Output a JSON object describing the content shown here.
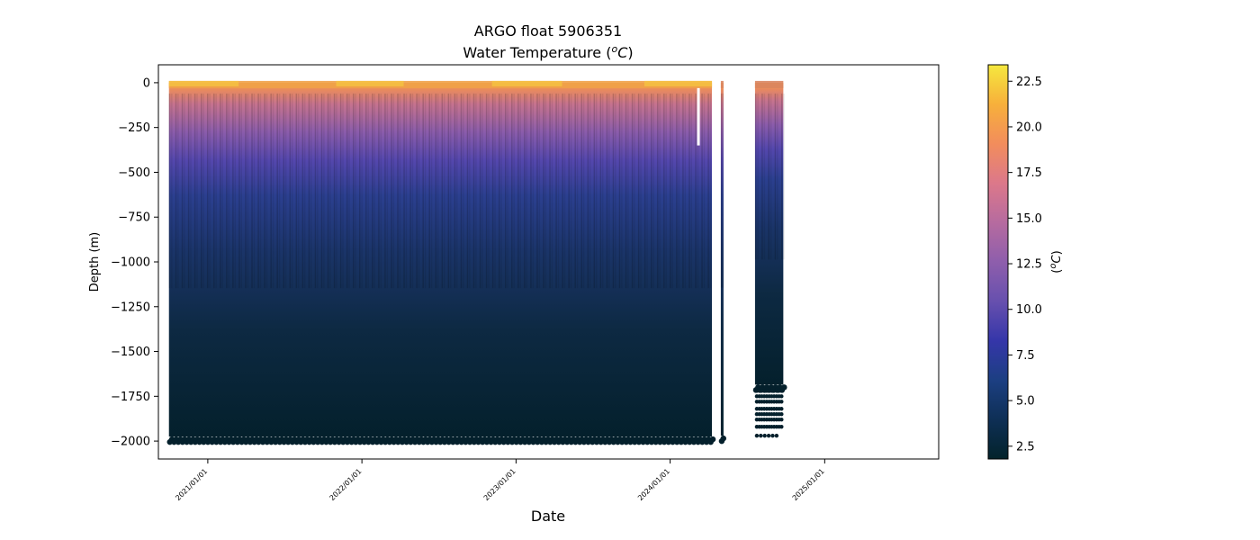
{
  "chart_data": {
    "type": "scatter",
    "title": "ARGO float 5906351",
    "subtitle_prefix": "Water Temperature (",
    "subtitle_unit_sup": "o",
    "subtitle_unit_base": "C",
    "subtitle_suffix": ")",
    "xlabel": "Date",
    "ylabel": "Depth (m)",
    "colorbar_label_prefix": "(",
    "colorbar_label_sup": "o",
    "colorbar_label_base": "C",
    "colorbar_label_suffix": ")",
    "xlim": [
      "2020-09-06",
      "2025-09-28"
    ],
    "ylim": [
      -2100,
      100
    ],
    "x_ticks": [
      {
        "date": "2021-01-01",
        "label": "2021/01/01"
      },
      {
        "date": "2022-01-01",
        "label": "2022/01/01"
      },
      {
        "date": "2023-01-01",
        "label": "2023/01/01"
      },
      {
        "date": "2024-01-01",
        "label": "2024/01/01"
      },
      {
        "date": "2025-01-01",
        "label": "2025/01/01"
      }
    ],
    "y_ticks": [
      {
        "value": 0,
        "label": "0"
      },
      {
        "value": -250,
        "label": "−250"
      },
      {
        "value": -500,
        "label": "−500"
      },
      {
        "value": -750,
        "label": "−750"
      },
      {
        "value": -1000,
        "label": "−1000"
      },
      {
        "value": -1250,
        "label": "−1250"
      },
      {
        "value": -1500,
        "label": "−1500"
      },
      {
        "value": -1750,
        "label": "−1750"
      },
      {
        "value": -2000,
        "label": "−2000"
      }
    ],
    "colorbar": {
      "range": [
        1.8,
        23.4
      ],
      "colormap": "thermal",
      "ticks": [
        {
          "value": 2.5,
          "label": "2.5"
        },
        {
          "value": 5.0,
          "label": "5.0"
        },
        {
          "value": 7.5,
          "label": "7.5"
        },
        {
          "value": 10.0,
          "label": "10.0"
        },
        {
          "value": 12.5,
          "label": "12.5"
        },
        {
          "value": 15.0,
          "label": "15.0"
        },
        {
          "value": 17.5,
          "label": "17.5"
        },
        {
          "value": 20.0,
          "label": "20.0"
        },
        {
          "value": 22.5,
          "label": "22.5"
        }
      ],
      "colors": [
        "#03232b",
        "#0e2f55",
        "#1c3f82",
        "#3536a9",
        "#6750ae",
        "#8e5eac",
        "#b66b9f",
        "#dc788a",
        "#f28d5c",
        "#f7b03b",
        "#f5e83e"
      ]
    },
    "segments": [
      {
        "start": "2020-10-01",
        "end": "2024-04-09",
        "bottom": -1975,
        "surface_temp": 17.0,
        "profile_interval_days": 5
      },
      {
        "start": "2024-04-30",
        "end": "2024-05-04",
        "bottom": -1970,
        "surface_temp": 14.0,
        "profile_interval_days": 5
      },
      {
        "start": "2024-07-20",
        "end": "2024-09-25",
        "bottom": -1685,
        "surface_temp": 13.0,
        "profile_interval_days": 5
      }
    ],
    "data_gap": {
      "date": "2024-03-08",
      "top": -30,
      "bottom": -350
    },
    "sparse_deep_points": {
      "start": "2024-07-20",
      "end": "2024-09-25",
      "depths": [
        -1720,
        -1750,
        -1780,
        -1820,
        -1850,
        -1880,
        -1920,
        -1970
      ]
    }
  }
}
